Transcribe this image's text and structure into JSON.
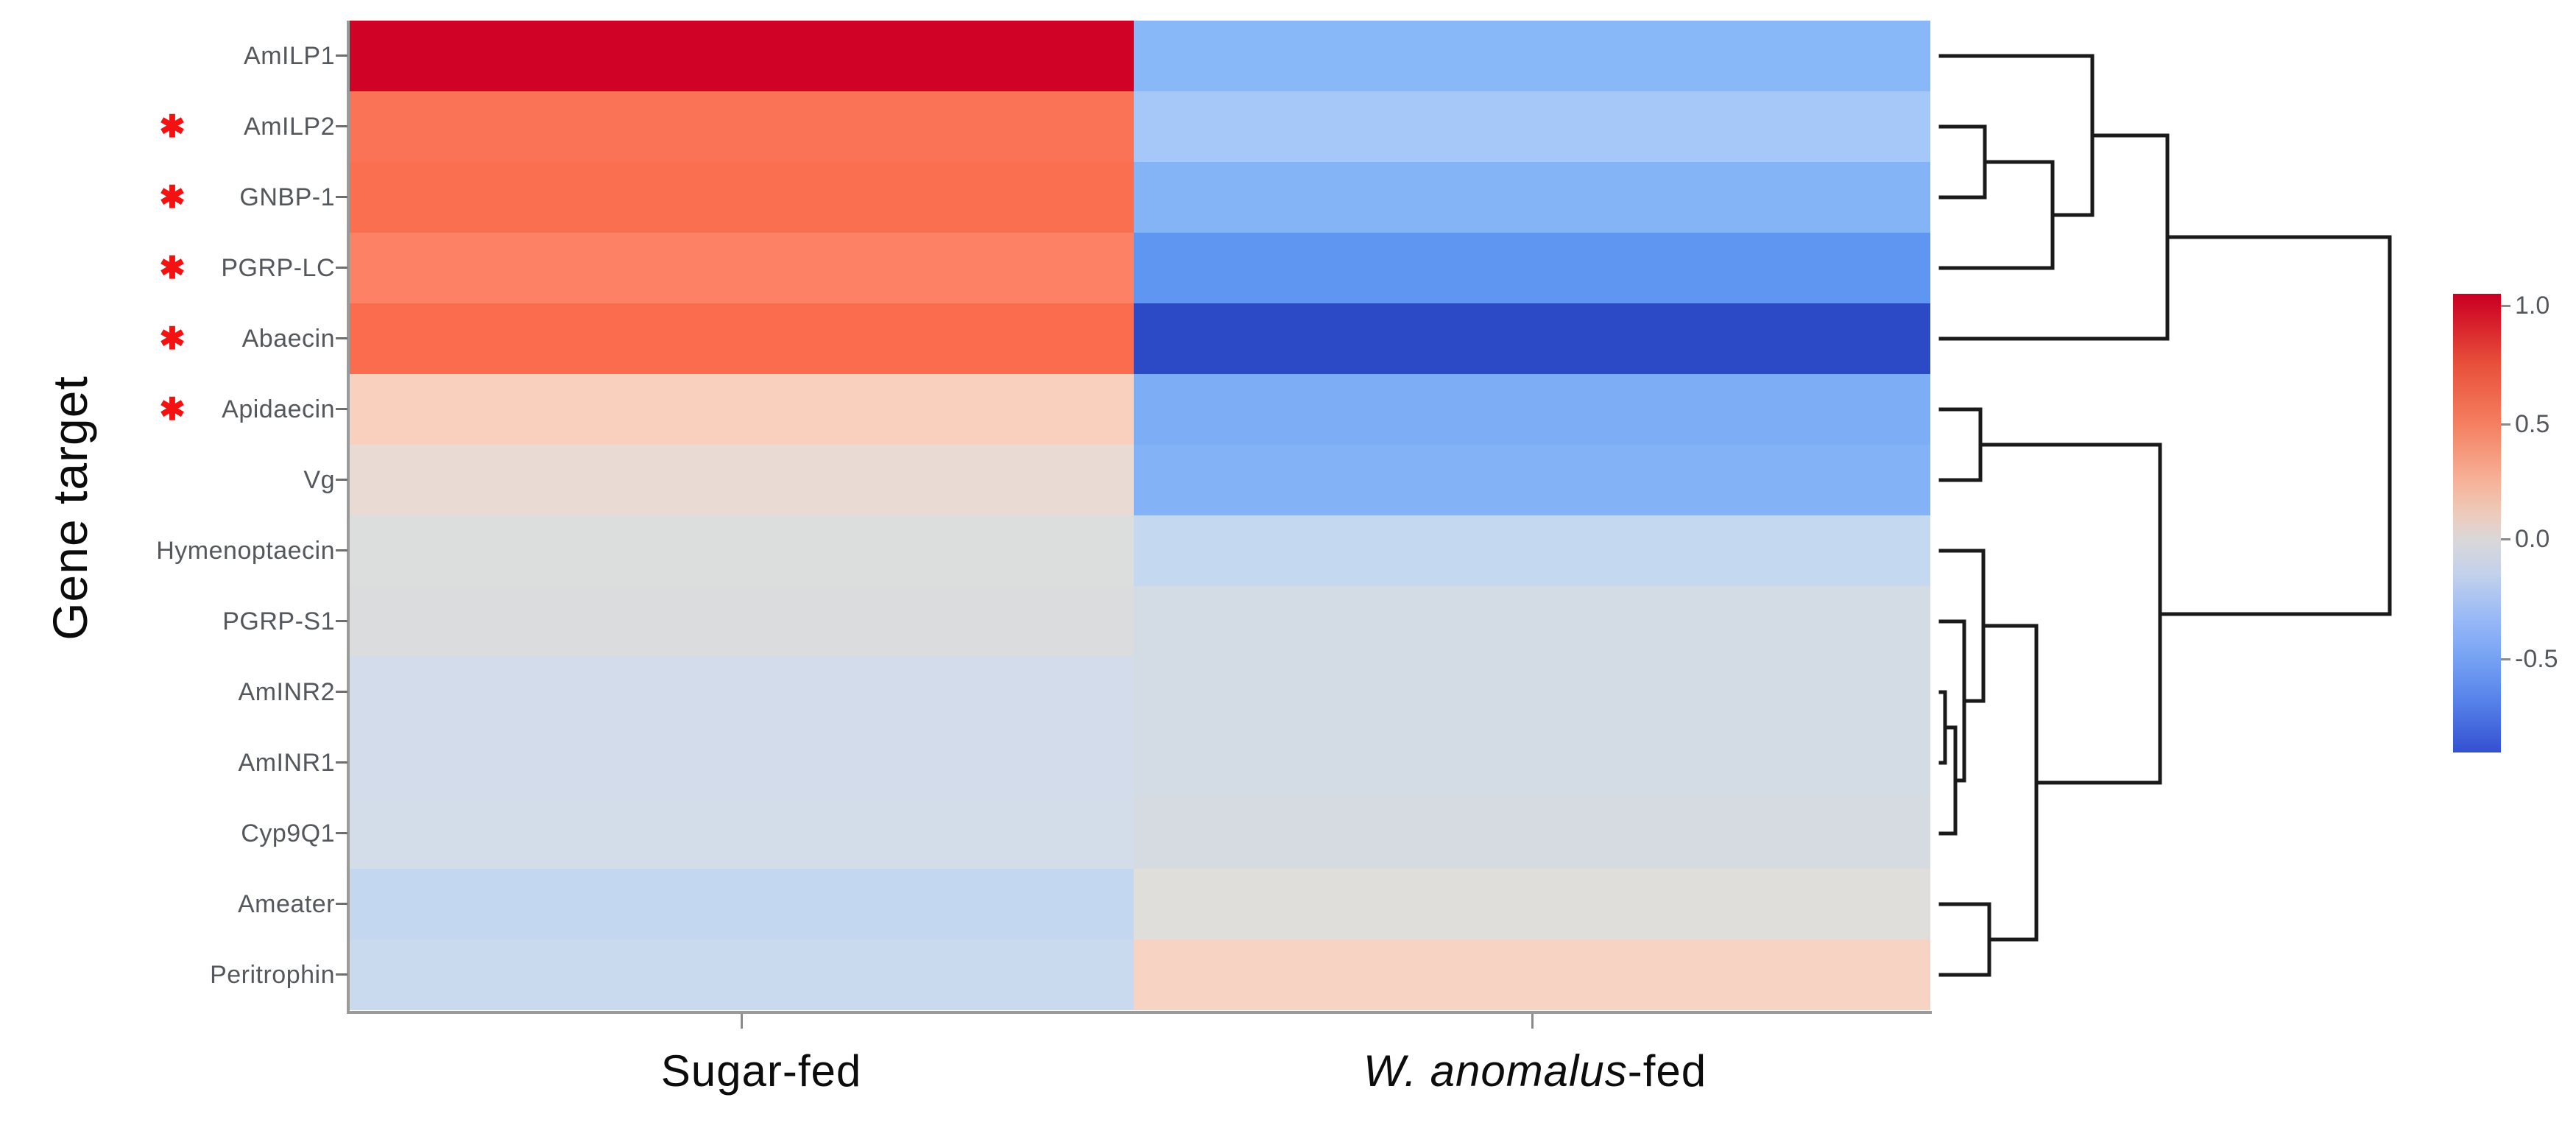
{
  "figure": {
    "y_axis_title": "Gene target",
    "x_axis": {
      "categories": [
        {
          "italic": "",
          "regular": "Sugar-fed"
        },
        {
          "italic": "W. anomalus",
          "regular": "-fed"
        }
      ]
    },
    "significance_marker": "✱",
    "rows": [
      {
        "label": "AmILP1",
        "significant": false,
        "colors": [
          "#d00226",
          "#88b8f7"
        ]
      },
      {
        "label": "AmILP2",
        "significant": true,
        "colors": [
          "#fb7356",
          "#a5c8f9"
        ]
      },
      {
        "label": "GNBP-1",
        "significant": true,
        "colors": [
          "#fa6f50",
          "#84b4f6"
        ]
      },
      {
        "label": "PGRP-LC",
        "significant": true,
        "colors": [
          "#fc8165",
          "#5e96f1"
        ]
      },
      {
        "label": "Abaecin",
        "significant": true,
        "colors": [
          "#fb6c4f",
          "#2c49c6"
        ]
      },
      {
        "label": "Apidaecin",
        "significant": true,
        "colors": [
          "#f9d0bd",
          "#7dadf5"
        ]
      },
      {
        "label": "Vg",
        "significant": false,
        "colors": [
          "#e9dad3",
          "#83b2f6"
        ]
      },
      {
        "label": "Hymenoptaecin",
        "significant": false,
        "colors": [
          "#dcdedd",
          "#c4d8ef"
        ]
      },
      {
        "label": "PGRP-S1",
        "significant": false,
        "colors": [
          "#dadcdd",
          "#d3dbe5"
        ]
      },
      {
        "label": "AmINR2",
        "significant": false,
        "colors": [
          "#d2dcea",
          "#d3dbe5"
        ]
      },
      {
        "label": "AmINR1",
        "significant": false,
        "colors": [
          "#d2dcea",
          "#d3dbe5"
        ]
      },
      {
        "label": "Cyp9Q1",
        "significant": false,
        "colors": [
          "#d3dce9",
          "#d6dbe1"
        ]
      },
      {
        "label": "Ameater",
        "significant": false,
        "colors": [
          "#c3d7f0",
          "#dfdeda"
        ]
      },
      {
        "label": "Peritrophin",
        "significant": false,
        "colors": [
          "#c9daee",
          "#f6d3c3"
        ]
      }
    ],
    "colorbar": {
      "tick_labels": [
        "1.0",
        "0.5",
        "0.0",
        "-0.5"
      ],
      "gradient_stops": [
        [
          "#ca0022",
          0
        ],
        [
          "#cf0a26",
          2.6
        ],
        [
          "#e8503a",
          15.3
        ],
        [
          "#f47e5f",
          28.1
        ],
        [
          "#f6b299",
          40.8
        ],
        [
          "#ecccbe",
          48.5
        ],
        [
          "#dad7d8",
          53.6
        ],
        [
          "#c2d1ec",
          61.2
        ],
        [
          "#96b7f6",
          71.4
        ],
        [
          "#78a3f4",
          79.1
        ],
        [
          "#5480e9",
          89.3
        ],
        [
          "#3450d1",
          100
        ]
      ]
    },
    "dendrogram": {
      "color": "#1a1a1a",
      "segments": [
        [
          2636,
          172,
          2696,
          172
        ],
        [
          2636,
          268,
          2696,
          268
        ],
        [
          2696,
          172,
          2696,
          268
        ],
        [
          2696,
          220,
          2788,
          220
        ],
        [
          2636,
          364,
          2788,
          364
        ],
        [
          2788,
          220,
          2788,
          364
        ],
        [
          2636,
          76,
          2842,
          76
        ],
        [
          2788,
          292,
          2842,
          292
        ],
        [
          2842,
          76,
          2842,
          292
        ],
        [
          2842,
          184,
          2944,
          184
        ],
        [
          2636,
          460,
          2944,
          460
        ],
        [
          2944,
          184,
          2944,
          460
        ],
        [
          2636,
          556,
          2690,
          556
        ],
        [
          2636,
          652,
          2690,
          652
        ],
        [
          2690,
          556,
          2690,
          652
        ],
        [
          2636,
          940,
          2642,
          940
        ],
        [
          2636,
          1036,
          2642,
          1036
        ],
        [
          2642,
          940,
          2642,
          1036
        ],
        [
          2642,
          988,
          2656,
          988
        ],
        [
          2636,
          1132,
          2656,
          1132
        ],
        [
          2656,
          988,
          2656,
          1132
        ],
        [
          2636,
          844,
          2668,
          844
        ],
        [
          2656,
          1060,
          2668,
          1060
        ],
        [
          2668,
          844,
          2668,
          1060
        ],
        [
          2636,
          748,
          2694,
          748
        ],
        [
          2668,
          952,
          2694,
          952
        ],
        [
          2694,
          748,
          2694,
          952
        ],
        [
          2636,
          1228,
          2702,
          1228
        ],
        [
          2636,
          1324,
          2702,
          1324
        ],
        [
          2702,
          1228,
          2702,
          1324
        ],
        [
          2694,
          850,
          2766,
          850
        ],
        [
          2702,
          1276,
          2766,
          1276
        ],
        [
          2766,
          850,
          2766,
          1276
        ],
        [
          2690,
          604,
          2934,
          604
        ],
        [
          2766,
          1063,
          2934,
          1063
        ],
        [
          2934,
          604,
          2934,
          1063
        ],
        [
          2944,
          322,
          3246,
          322
        ],
        [
          2934,
          834,
          3246,
          834
        ],
        [
          3246,
          322,
          3246,
          834
        ]
      ]
    }
  },
  "chart_data": {
    "type": "heatmap",
    "title": "",
    "ylabel": "Gene target",
    "x_categories": [
      "Sugar-fed",
      "W. anomalus-fed"
    ],
    "y_categories": [
      "AmILP1",
      "AmILP2",
      "GNBP-1",
      "PGRP-LC",
      "Abaecin",
      "Apidaecin",
      "Vg",
      "Hymenoptaecin",
      "PGRP-S1",
      "AmINR2",
      "AmINR1",
      "Cyp9Q1",
      "Ameater",
      "Peritrophin"
    ],
    "series": [
      {
        "name": "Sugar-fed",
        "values": [
          1.05,
          0.62,
          0.64,
          0.55,
          0.64,
          0.28,
          0.08,
          0.01,
          -0.01,
          -0.08,
          -0.08,
          -0.08,
          -0.16,
          -0.14
        ]
      },
      {
        "name": "W. anomalus-fed",
        "values": [
          -0.42,
          -0.31,
          -0.45,
          -0.58,
          -0.9,
          -0.49,
          -0.45,
          -0.2,
          -0.1,
          -0.1,
          -0.1,
          -0.06,
          0.01,
          0.25
        ]
      }
    ],
    "significant_rows": [
      "AmILP2",
      "GNBP-1",
      "PGRP-LC",
      "Abaecin",
      "Apidaecin"
    ],
    "colorbar_ticks": [
      1.0,
      0.5,
      0.0,
      -0.5
    ],
    "colorbar_range": [
      -0.91,
      1.05
    ],
    "colorscale": "red-blue diverging (RdBu)",
    "row_dendrogram": true,
    "legend_position": "right colorbar"
  }
}
